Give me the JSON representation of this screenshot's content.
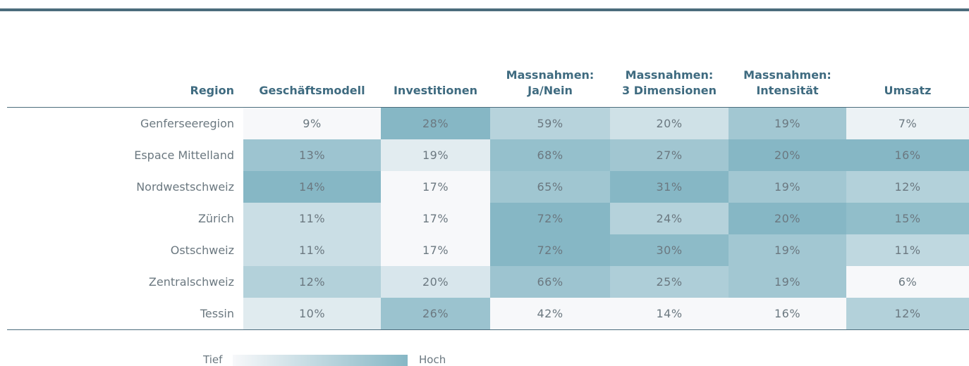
{
  "table": {
    "columns": [
      "Region",
      "Geschäftsmodell",
      "Investitionen",
      "Massnahmen:\nJa/Nein",
      "Massnahmen:\n3 Dimensionen",
      "Massnahmen:\nIntensität",
      "Umsatz"
    ],
    "rows": [
      [
        "Genferseeregion",
        "9%",
        "28%",
        "59%",
        "20%",
        "19%",
        "7%"
      ],
      [
        "Espace Mittelland",
        "13%",
        "19%",
        "68%",
        "27%",
        "20%",
        "16%"
      ],
      [
        "Nordwestschweiz",
        "14%",
        "17%",
        "65%",
        "31%",
        "19%",
        "12%"
      ],
      [
        "Zürich",
        "11%",
        "17%",
        "72%",
        "24%",
        "20%",
        "15%"
      ],
      [
        "Ostschweiz",
        "11%",
        "17%",
        "72%",
        "30%",
        "19%",
        "11%"
      ],
      [
        "Zentralschweiz",
        "12%",
        "20%",
        "66%",
        "25%",
        "19%",
        "6%"
      ],
      [
        "Tessin",
        "10%",
        "26%",
        "42%",
        "14%",
        "16%",
        "12%"
      ]
    ]
  },
  "legend": {
    "low": "Tief",
    "high": "Hoch"
  }
}
